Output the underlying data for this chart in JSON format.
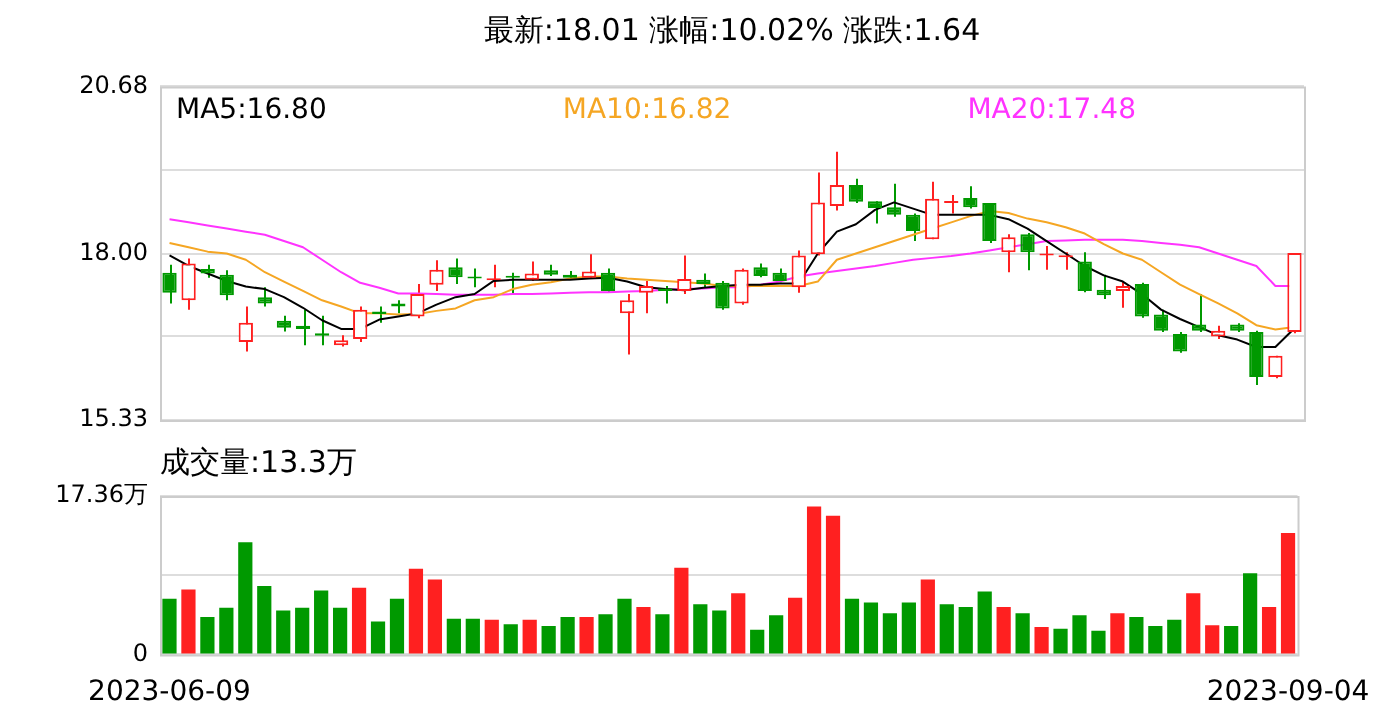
{
  "chart_data": [
    {
      "type": "candlestick",
      "title": "最新:18.01  涨幅:10.02%  涨跌:1.64",
      "categories": [
        "2023-06-09",
        null,
        null,
        null,
        null,
        null,
        null,
        null,
        null,
        null,
        null,
        null,
        null,
        null,
        null,
        null,
        null,
        null,
        null,
        null,
        null,
        null,
        null,
        null,
        null,
        null,
        null,
        null,
        null,
        null,
        null,
        null,
        null,
        null,
        null,
        null,
        null,
        null,
        null,
        null,
        null,
        null,
        null,
        null,
        null,
        null,
        null,
        null,
        null,
        null,
        null,
        null,
        null,
        null,
        null,
        null,
        null,
        null,
        null,
        "2023-09-04"
      ],
      "ohlc": [
        [
          17.69,
          17.82,
          17.2,
          17.37
        ],
        [
          17.25,
          17.92,
          17.1,
          17.84
        ],
        [
          17.75,
          17.82,
          17.61,
          17.68
        ],
        [
          17.66,
          17.73,
          17.25,
          17.33
        ],
        [
          16.58,
          17.15,
          16.43,
          16.89
        ],
        [
          17.3,
          17.46,
          17.15,
          17.2
        ],
        [
          16.92,
          17.0,
          16.75,
          16.81
        ],
        [
          16.84,
          17.1,
          16.53,
          16.79
        ],
        [
          16.72,
          17.0,
          16.53,
          16.68
        ],
        [
          16.53,
          16.69,
          16.51,
          16.61
        ],
        [
          16.63,
          17.15,
          16.58,
          17.1
        ],
        [
          17.07,
          17.15,
          16.89,
          17.03
        ],
        [
          17.2,
          17.25,
          17.04,
          17.15
        ],
        [
          16.99,
          17.51,
          16.96,
          17.35
        ],
        [
          17.5,
          17.89,
          17.4,
          17.74
        ],
        [
          17.78,
          17.92,
          17.51,
          17.62
        ],
        [
          17.63,
          17.76,
          17.46,
          17.6
        ],
        [
          17.57,
          17.82,
          17.46,
          17.6
        ],
        [
          17.64,
          17.69,
          17.35,
          17.61
        ],
        [
          17.58,
          17.87,
          17.56,
          17.68
        ],
        [
          17.73,
          17.82,
          17.64,
          17.66
        ],
        [
          17.66,
          17.72,
          17.58,
          17.61
        ],
        [
          17.61,
          17.99,
          17.59,
          17.71
        ],
        [
          17.69,
          17.76,
          17.38,
          17.4
        ],
        [
          17.04,
          17.35,
          16.38,
          17.25
        ],
        [
          17.37,
          17.56,
          17.04,
          17.48
        ],
        [
          17.44,
          17.48,
          17.2,
          17.4
        ],
        [
          17.4,
          17.97,
          17.35,
          17.59
        ],
        [
          17.58,
          17.68,
          17.44,
          17.51
        ],
        [
          17.53,
          17.56,
          17.1,
          17.12
        ],
        [
          17.2,
          17.76,
          17.18,
          17.74
        ],
        [
          17.78,
          17.84,
          17.62,
          17.64
        ],
        [
          17.69,
          17.76,
          17.54,
          17.56
        ],
        [
          17.46,
          18.05,
          17.37,
          17.97
        ],
        [
          17.99,
          19.3,
          17.97,
          18.82
        ],
        [
          18.76,
          19.63,
          18.69,
          19.1
        ],
        [
          19.1,
          19.2,
          18.81,
          18.83
        ],
        [
          18.84,
          18.84,
          18.48,
          18.73
        ],
        [
          18.74,
          19.12,
          18.59,
          18.62
        ],
        [
          18.62,
          18.64,
          18.2,
          18.36
        ],
        [
          18.23,
          19.15,
          18.23,
          18.88
        ],
        [
          18.81,
          18.94,
          18.64,
          18.84
        ],
        [
          18.89,
          19.08,
          18.72,
          18.74
        ],
        [
          18.81,
          18.81,
          18.17,
          18.2
        ],
        [
          18.02,
          18.31,
          17.7,
          18.26
        ],
        [
          18.31,
          18.33,
          17.73,
          18.02
        ],
        [
          17.97,
          18.12,
          17.74,
          18.0
        ],
        [
          17.94,
          18.02,
          17.74,
          17.96
        ],
        [
          17.87,
          18.02,
          17.38,
          17.4
        ],
        [
          17.42,
          17.66,
          17.27,
          17.33
        ],
        [
          17.4,
          17.56,
          17.13,
          17.48
        ],
        [
          17.51,
          17.53,
          16.97,
          16.99
        ],
        [
          17.02,
          17.1,
          16.74,
          16.76
        ],
        [
          16.71,
          16.74,
          16.41,
          16.43
        ],
        [
          16.86,
          17.35,
          16.74,
          16.76
        ],
        [
          16.67,
          16.84,
          16.63,
          16.76
        ],
        [
          16.86,
          16.88,
          16.74,
          16.76
        ],
        [
          16.74,
          16.76,
          15.89,
          16.02
        ],
        [
          16.02,
          16.36,
          16.0,
          16.36
        ],
        [
          16.74,
          18.01,
          16.72,
          18.01
        ]
      ],
      "colors": [
        "#009900",
        "#ff2020",
        "#009900",
        "#009900",
        "#ff2020",
        "#009900",
        "#009900",
        "#009900",
        "#009900",
        "#ff2020",
        "#ff2020",
        "#009900",
        "#009900",
        "#ff2020",
        "#ff2020",
        "#009900",
        "#009900",
        "#ff2020",
        "#009900",
        "#ff2020",
        "#009900",
        "#009900",
        "#ff2020",
        "#009900",
        "#ff2020",
        "#ff2020",
        "#009900",
        "#ff2020",
        "#009900",
        "#009900",
        "#ff2020",
        "#009900",
        "#009900",
        "#ff2020",
        "#ff2020",
        "#ff2020",
        "#009900",
        "#009900",
        "#009900",
        "#009900",
        "#ff2020",
        "#ff2020",
        "#009900",
        "#009900",
        "#ff2020",
        "#009900",
        "#ff2020",
        "#ff2020",
        "#009900",
        "#009900",
        "#ff2020",
        "#009900",
        "#009900",
        "#009900",
        "#009900",
        "#ff2020",
        "#009900",
        "#009900",
        "#ff2020",
        "#ff2020"
      ],
      "series": [
        {
          "name": "MA5:16.80",
          "type": "line",
          "color": "#000000",
          "values": [
            17.97,
            17.8,
            17.68,
            17.56,
            17.47,
            17.43,
            17.3,
            17.13,
            16.93,
            16.79,
            16.79,
            16.94,
            16.99,
            17.04,
            17.18,
            17.3,
            17.35,
            17.56,
            17.58,
            17.58,
            17.58,
            17.58,
            17.6,
            17.61,
            17.55,
            17.46,
            17.43,
            17.41,
            17.45,
            17.48,
            17.5,
            17.5,
            17.52,
            17.52,
            18.0,
            18.35,
            18.47,
            18.7,
            18.82,
            18.72,
            18.62,
            18.62,
            18.62,
            18.62,
            18.55,
            18.4,
            18.2,
            18.0,
            17.8,
            17.65,
            17.55,
            17.35,
            17.1,
            16.95,
            16.82,
            16.69,
            16.62,
            16.5,
            16.5,
            16.8
          ]
        },
        {
          "name": "MA10:16.82",
          "type": "line",
          "color": "#f5a623",
          "values": [
            18.17,
            18.1,
            18.03,
            18.0,
            17.9,
            17.7,
            17.55,
            17.4,
            17.25,
            17.15,
            17.04,
            17.04,
            17.02,
            17.03,
            17.08,
            17.12,
            17.25,
            17.3,
            17.43,
            17.5,
            17.54,
            17.6,
            17.63,
            17.63,
            17.6,
            17.58,
            17.56,
            17.54,
            17.52,
            17.48,
            17.48,
            17.48,
            17.48,
            17.48,
            17.55,
            17.9,
            18.0,
            18.1,
            18.2,
            18.3,
            18.4,
            18.5,
            18.6,
            18.68,
            18.65,
            18.56,
            18.5,
            18.42,
            18.32,
            18.15,
            18.0,
            17.9,
            17.7,
            17.5,
            17.35,
            17.2,
            17.04,
            16.85,
            16.78,
            16.82
          ]
        },
        {
          "name": "MA20:17.48",
          "type": "line",
          "color": "#ff33ff",
          "values": [
            18.55,
            18.5,
            18.45,
            18.4,
            18.35,
            18.3,
            18.2,
            18.1,
            17.9,
            17.7,
            17.53,
            17.45,
            17.36,
            17.36,
            17.35,
            17.34,
            17.34,
            17.34,
            17.35,
            17.35,
            17.36,
            17.37,
            17.38,
            17.38,
            17.39,
            17.4,
            17.42,
            17.43,
            17.44,
            17.46,
            17.46,
            17.5,
            17.55,
            17.63,
            17.68,
            17.72,
            17.76,
            17.8,
            17.85,
            17.9,
            17.93,
            17.96,
            18.0,
            18.05,
            18.1,
            18.15,
            18.2,
            18.21,
            18.22,
            18.22,
            18.22,
            18.2,
            18.17,
            18.14,
            18.1,
            18.0,
            17.9,
            17.8,
            17.48,
            17.48
          ]
        }
      ],
      "ylim": [
        15.33,
        20.68
      ],
      "yticks": [
        15.33,
        {
          "value": 16.67,
          "label": null
        },
        {
          "value": 18,
          "label": "18.00"
        },
        {
          "value": 19.34,
          "label": null
        },
        20.68
      ],
      "grid": "y",
      "legend": "top",
      "tick_labels": "y",
      "marker": "none"
    },
    {
      "type": "bar",
      "title": "成交量:13.3万",
      "categories": [
        "2023-06-09",
        null,
        null,
        null,
        null,
        null,
        null,
        null,
        null,
        null,
        null,
        null,
        null,
        null,
        null,
        null,
        null,
        null,
        null,
        null,
        null,
        null,
        null,
        null,
        null,
        null,
        null,
        null,
        null,
        null,
        null,
        null,
        null,
        null,
        null,
        null,
        null,
        null,
        null,
        null,
        null,
        null,
        null,
        null,
        null,
        null,
        null,
        null,
        null,
        null,
        null,
        null,
        null,
        null,
        null,
        null,
        null,
        null,
        null,
        "2023-09-04"
      ],
      "values": [
        6.1,
        7.1,
        4.1,
        5.1,
        12.3,
        7.5,
        4.8,
        5.1,
        7.0,
        5.1,
        7.3,
        3.6,
        6.1,
        9.4,
        8.2,
        3.9,
        3.9,
        3.8,
        3.3,
        3.8,
        3.1,
        4.1,
        4.1,
        4.4,
        6.1,
        5.2,
        4.4,
        9.5,
        5.5,
        4.8,
        6.7,
        2.7,
        4.3,
        6.2,
        16.2,
        15.2,
        6.1,
        5.7,
        4.5,
        5.7,
        8.2,
        5.5,
        5.2,
        6.9,
        5.2,
        4.5,
        3.0,
        2.8,
        4.3,
        2.6,
        4.5,
        4.1,
        3.1,
        3.8,
        6.7,
        3.2,
        3.1,
        8.9,
        5.2,
        13.3
      ],
      "colors": [
        "#009900",
        "#ff2020",
        "#009900",
        "#009900",
        "#009900",
        "#009900",
        "#009900",
        "#009900",
        "#009900",
        "#009900",
        "#ff2020",
        "#009900",
        "#009900",
        "#ff2020",
        "#ff2020",
        "#009900",
        "#009900",
        "#ff2020",
        "#009900",
        "#ff2020",
        "#009900",
        "#009900",
        "#ff2020",
        "#009900",
        "#009900",
        "#ff2020",
        "#009900",
        "#ff2020",
        "#009900",
        "#009900",
        "#ff2020",
        "#009900",
        "#009900",
        "#ff2020",
        "#ff2020",
        "#ff2020",
        "#009900",
        "#009900",
        "#009900",
        "#009900",
        "#ff2020",
        "#009900",
        "#009900",
        "#009900",
        "#ff2020",
        "#009900",
        "#ff2020",
        "#009900",
        "#009900",
        "#009900",
        "#ff2020",
        "#009900",
        "#009900",
        "#009900",
        "#ff2020",
        "#ff2020",
        "#009900",
        "#009900",
        "#ff2020",
        "#ff2020"
      ],
      "ylim": [
        0,
        17.36
      ],
      "yticks": [
        0,
        {
          "value": 8.68,
          "label": null
        },
        {
          "value": 17.36,
          "label": "17.36万"
        }
      ],
      "grid": "y"
    }
  ]
}
